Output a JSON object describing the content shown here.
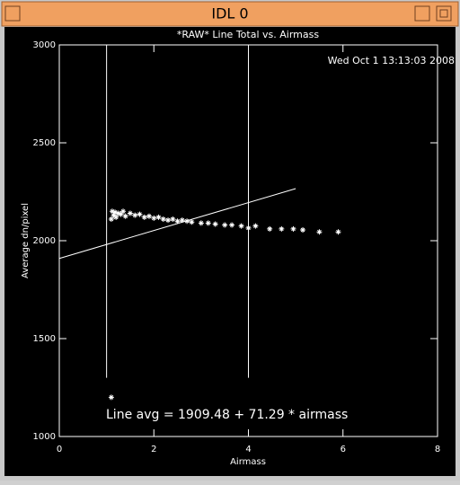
{
  "window": {
    "title": "IDL 0"
  },
  "chart_data": {
    "type": "scatter",
    "title": "*RAW* Line Total vs. Airmass",
    "x_label": "Airmass",
    "y_label": "Average dn/pixel",
    "annotations": [
      "Wed Oct  1 13:13:03 2008",
      "Line avg = 1909.48 + 71.29 * airmass"
    ],
    "xlim": [
      0,
      8
    ],
    "xticks": [
      0,
      2,
      4,
      6,
      8
    ],
    "ylim": [
      1000,
      3000
    ],
    "yticks": [
      1000,
      1500,
      2000,
      2500,
      3000
    ],
    "color": "#ffffff",
    "series": [
      {
        "style": "asterisk",
        "x": [
          1.1,
          1.12,
          1.15,
          1.18,
          1.2,
          1.25,
          1.3,
          1.35,
          1.4,
          1.5,
          1.6,
          1.7,
          1.8,
          1.9,
          2.0,
          2.1,
          2.2,
          2.3,
          2.4,
          2.5,
          2.6,
          2.7,
          2.8,
          3.0,
          3.15,
          3.3,
          3.5,
          3.65,
          3.85,
          4.0,
          4.15,
          4.45,
          4.7,
          4.95,
          5.15,
          5.5,
          5.9,
          1.1
        ],
        "values": [
          2110,
          2150,
          2130,
          2145,
          2120,
          2140,
          2135,
          2150,
          2125,
          2140,
          2130,
          2135,
          2120,
          2125,
          2115,
          2120,
          2110,
          2105,
          2110,
          2100,
          2105,
          2100,
          2095,
          2090,
          2090,
          2085,
          2080,
          2080,
          2075,
          2065,
          2075,
          2060,
          2060,
          2060,
          2055,
          2045,
          2045,
          1200
        ]
      },
      {
        "style": "line",
        "x": [
          1,
          1
        ],
        "values": [
          1300,
          3000
        ]
      },
      {
        "style": "line",
        "x": [
          4,
          4
        ],
        "values": [
          1300,
          3000
        ]
      },
      {
        "style": "line",
        "x": [
          0,
          5
        ],
        "values": [
          1909.48,
          2265.93
        ]
      }
    ]
  }
}
